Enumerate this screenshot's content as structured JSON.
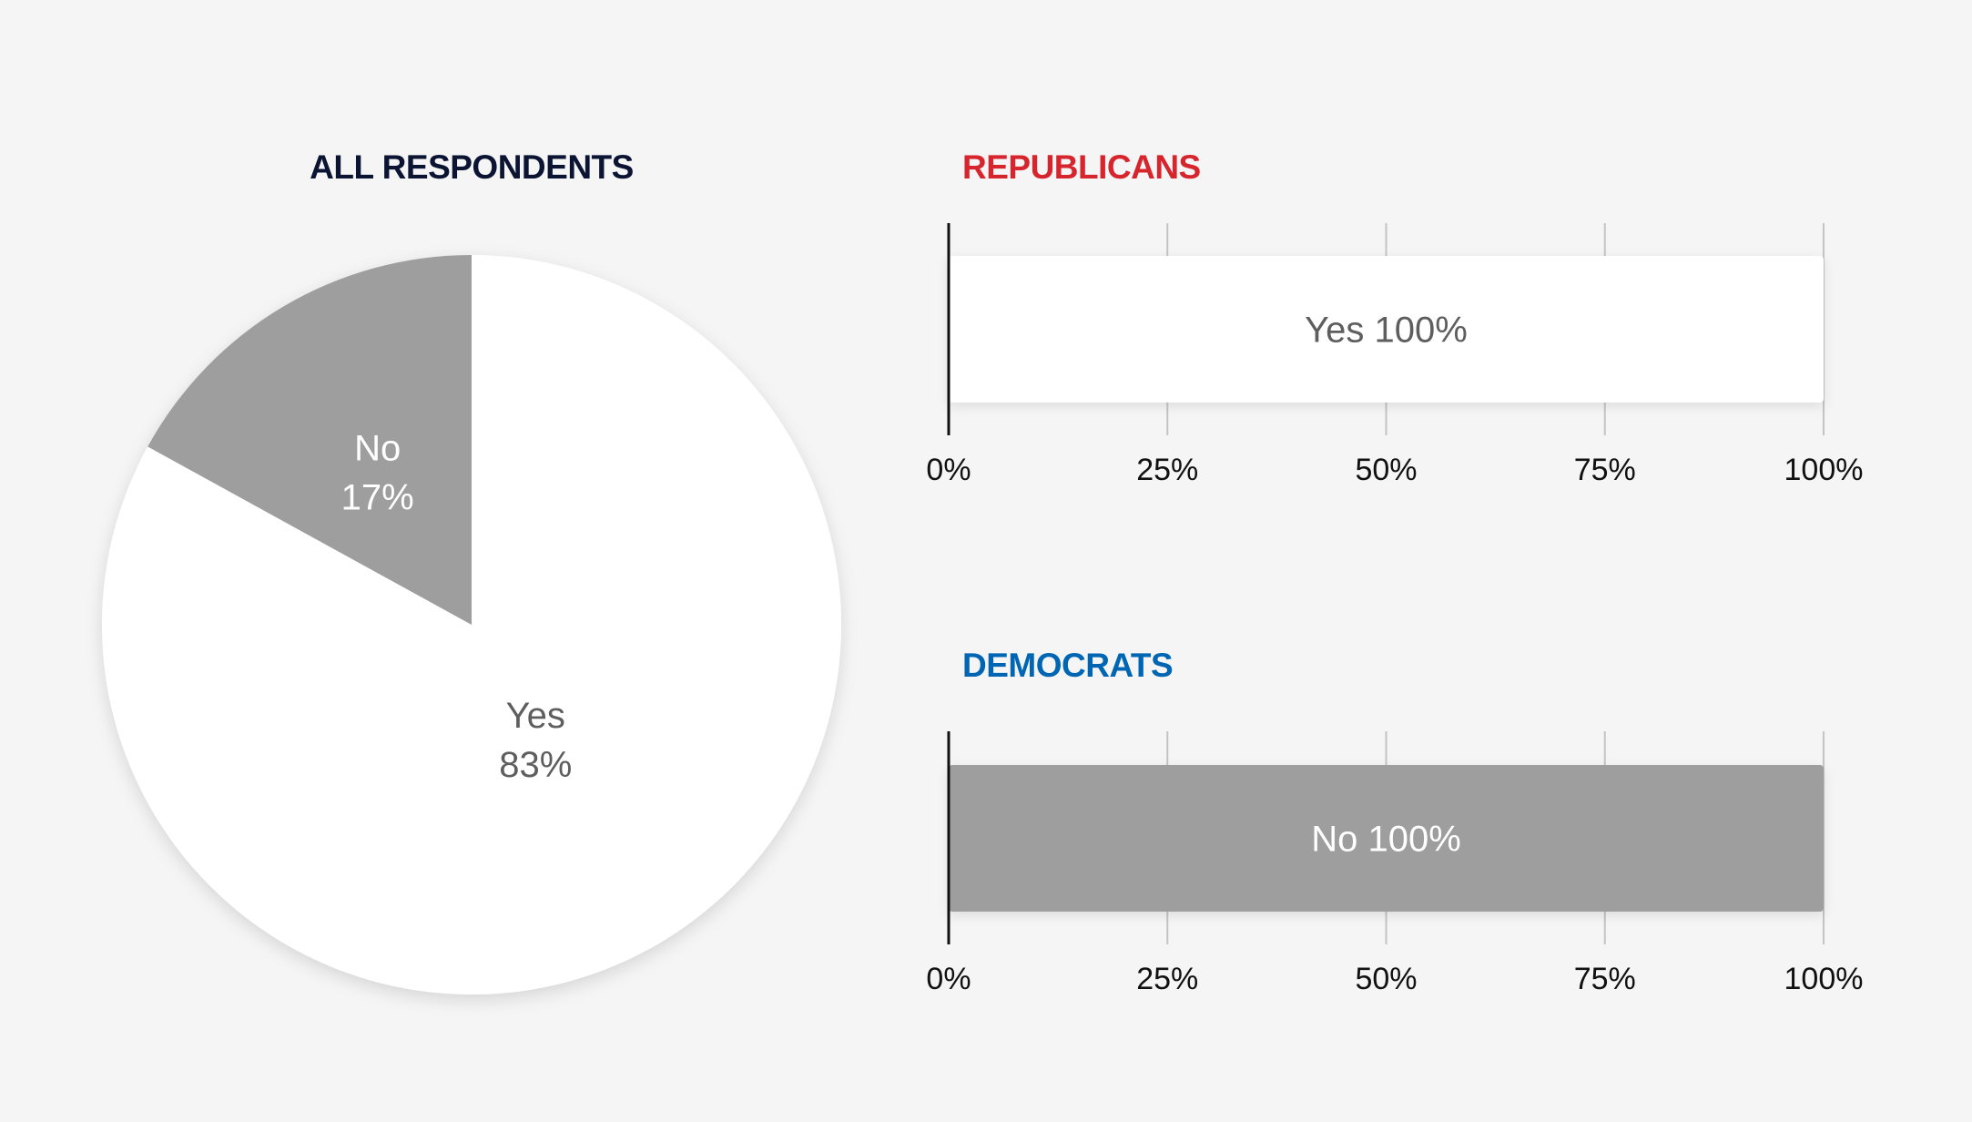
{
  "colors": {
    "background": "#f5f5f5",
    "title_dark": "#0b1533",
    "title_republican": "#d6252d",
    "title_democrat": "#0066b3",
    "yes_fill": "#ffffff",
    "no_fill": "#9e9e9e",
    "yes_text": "#5e5e5e",
    "no_text": "#ffffff",
    "axis_line": "#111111",
    "grid_line": "#c4c4c4",
    "tick_text": "#111111"
  },
  "chart_data": [
    {
      "type": "pie",
      "title": "ALL RESPONDENTS",
      "slices": [
        {
          "label": "Yes",
          "value": 83,
          "value_label": "83%",
          "color": "#ffffff",
          "text_color": "#5e5e5e"
        },
        {
          "label": "No",
          "value": 17,
          "value_label": "17%",
          "color": "#9e9e9e",
          "text_color": "#ffffff"
        }
      ]
    },
    {
      "type": "bar",
      "orientation": "horizontal",
      "title": "REPUBLICANS",
      "title_color": "#d6252d",
      "xlim": [
        0,
        100
      ],
      "ticks": [
        0,
        25,
        50,
        75,
        100
      ],
      "tick_labels": [
        "0%",
        "25%",
        "50%",
        "75%",
        "100%"
      ],
      "grid": true,
      "segments": [
        {
          "label": "Yes",
          "value": 100,
          "value_label": "Yes 100%",
          "color": "#ffffff",
          "text_color": "#5e5e5e"
        }
      ]
    },
    {
      "type": "bar",
      "orientation": "horizontal",
      "title": "DEMOCRATS",
      "title_color": "#0066b3",
      "xlim": [
        0,
        100
      ],
      "ticks": [
        0,
        25,
        50,
        75,
        100
      ],
      "tick_labels": [
        "0%",
        "25%",
        "50%",
        "75%",
        "100%"
      ],
      "grid": true,
      "segments": [
        {
          "label": "No",
          "value": 100,
          "value_label": "No 100%",
          "color": "#9e9e9e",
          "text_color": "#ffffff"
        }
      ]
    }
  ]
}
